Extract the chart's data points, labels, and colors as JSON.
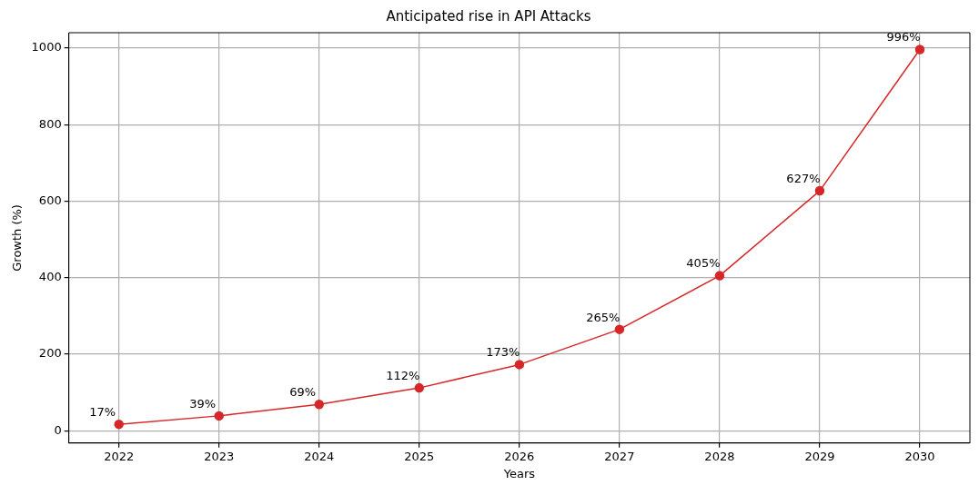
{
  "chart_data": {
    "type": "line",
    "title": "Anticipated rise in API Attacks",
    "xlabel": "Years",
    "ylabel": "Growth (%)",
    "categories": [
      "2022",
      "2023",
      "2024",
      "2025",
      "2026",
      "2027",
      "2028",
      "2029",
      "2030"
    ],
    "series": [
      {
        "color": "#d62728",
        "values": [
          17,
          39,
          69,
          112,
          173,
          265,
          405,
          627,
          996
        ],
        "value_labels": [
          "17%",
          "39%",
          "69%",
          "112%",
          "173%",
          "265%",
          "405%",
          "627%",
          "996%"
        ]
      }
    ],
    "ylim": [
      -32,
      1040
    ],
    "yticks": [
      0,
      200,
      400,
      600,
      800,
      1000
    ],
    "grid": true,
    "marker": "circle",
    "line_style": "solid",
    "legend": false
  }
}
